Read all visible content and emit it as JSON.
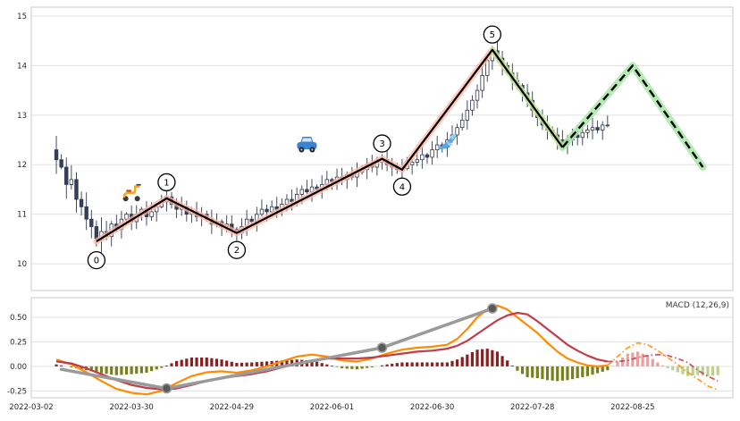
{
  "figure": {
    "background": "#ffffff"
  },
  "chart_data": [
    {
      "type": "candlestick",
      "title": "",
      "xlim": [
        0,
        140
      ],
      "ylim": [
        9.46,
        15.18
      ],
      "y_ticks": [
        10,
        11,
        12,
        13,
        14,
        15
      ],
      "y_tick_labels": [
        "10",
        "11",
        "12",
        "13",
        "14",
        "15"
      ],
      "x_tick_indices": [
        0,
        20,
        40,
        60,
        80,
        100,
        120
      ],
      "x_tick_labels": [
        "2022-03-02",
        "2022-03-30",
        "2022-04-29",
        "2022-06-01",
        "2022-06-30",
        "2022-07-28",
        "2022-08-25"
      ],
      "grid": "horizontal",
      "candles": {
        "start_index": 5,
        "closes": [
          12.1,
          11.95,
          11.6,
          11.7,
          11.3,
          11.15,
          10.9,
          10.75,
          10.5,
          10.65,
          10.55,
          10.8,
          10.7,
          10.9,
          11.0,
          10.85,
          11.0,
          11.1,
          10.95,
          11.05,
          11.15,
          11.25,
          11.35,
          11.2,
          11.1,
          11.15,
          11.0,
          11.05,
          10.95,
          11.0,
          10.9,
          10.8,
          10.85,
          10.75,
          10.8,
          10.7,
          10.62,
          10.75,
          10.9,
          10.85,
          11.0,
          11.1,
          11.05,
          11.15,
          11.1,
          11.2,
          11.3,
          11.25,
          11.4,
          11.5,
          11.45,
          11.55,
          11.5,
          11.6,
          11.7,
          11.65,
          11.75,
          11.7,
          11.8,
          11.75,
          11.85,
          11.9,
          12.0,
          11.95,
          12.05,
          12.1,
          12.0,
          11.95,
          11.9,
          11.92,
          12.0,
          12.05,
          12.1,
          12.2,
          12.15,
          12.3,
          12.4,
          12.35,
          12.5,
          12.6,
          12.75,
          12.9,
          13.1,
          13.3,
          13.5,
          13.8,
          14.1,
          14.3,
          14.15,
          14.0,
          13.85,
          13.7,
          13.6,
          13.45,
          13.3,
          13.1,
          12.95,
          12.8,
          12.7,
          12.6,
          12.5,
          12.4,
          12.5,
          12.6,
          12.55,
          12.65,
          12.7,
          12.75,
          12.7,
          12.8,
          12.8
        ]
      },
      "elliott_wave": {
        "line_color": "#000000",
        "highlight_color": "#ffb4a2",
        "points": [
          {
            "label": "0",
            "index": 13,
            "price": 10.45,
            "label_offset": [
              0,
              21
            ]
          },
          {
            "label": "1",
            "index": 27,
            "price": 11.32,
            "label_offset": [
              0,
              -18
            ]
          },
          {
            "label": "2",
            "index": 41,
            "price": 10.62,
            "label_offset": [
              0,
              19
            ]
          },
          {
            "label": "3",
            "index": 70,
            "price": 12.12,
            "label_offset": [
              0,
              -17
            ]
          },
          {
            "label": "4",
            "index": 74,
            "price": 11.9,
            "label_offset": [
              0,
              19
            ]
          },
          {
            "label": "5",
            "index": 92,
            "price": 14.32,
            "label_offset": [
              0,
              -17
            ]
          }
        ]
      },
      "trend_continuation": {
        "style": "solid",
        "line_color": "#000000",
        "highlight_color": "#c9e79b",
        "points": [
          [
            92,
            14.32
          ],
          [
            106,
            12.35
          ]
        ]
      },
      "projection": {
        "style": "dashed",
        "line_color": "#000000",
        "highlight_color": "#a8e6a8",
        "points": [
          [
            106,
            12.35
          ],
          [
            120,
            14.0
          ],
          [
            134,
            11.95
          ]
        ]
      },
      "emoji_markers": [
        {
          "name": "scooter",
          "index": 20,
          "price": 11.45
        },
        {
          "name": "car",
          "index": 55,
          "price": 12.42
        },
        {
          "name": "airplane",
          "index": 83,
          "price": 12.45
        }
      ],
      "candle_colors": {
        "up_fill": "#ffffff",
        "down_fill": "#35405a",
        "edge": "#2e3950"
      }
    },
    {
      "type": "line",
      "label": "MACD (12,26,9)",
      "ylim": [
        -0.32,
        0.7
      ],
      "y_ticks": [
        -0.25,
        0.0,
        0.25,
        0.5
      ],
      "y_tick_labels": [
        "-0.25",
        "0.00",
        "0.25",
        "0.50"
      ],
      "series": [
        {
          "name": "macd",
          "color": "#ff8c00",
          "width": 2.2,
          "points": [
            [
              5,
              0.07
            ],
            [
              8,
              0.02
            ],
            [
              11,
              -0.06
            ],
            [
              14,
              -0.15
            ],
            [
              17,
              -0.23
            ],
            [
              20,
              -0.27
            ],
            [
              23,
              -0.285
            ],
            [
              26,
              -0.25
            ],
            [
              29,
              -0.17
            ],
            [
              32,
              -0.1
            ],
            [
              35,
              -0.06
            ],
            [
              38,
              -0.05
            ],
            [
              41,
              -0.065
            ],
            [
              44,
              -0.04
            ],
            [
              47,
              0.0
            ],
            [
              50,
              0.05
            ],
            [
              53,
              0.1
            ],
            [
              56,
              0.12
            ],
            [
              59,
              0.1
            ],
            [
              62,
              0.06
            ],
            [
              65,
              0.05
            ],
            [
              68,
              0.08
            ],
            [
              71,
              0.13
            ],
            [
              74,
              0.17
            ],
            [
              77,
              0.19
            ],
            [
              80,
              0.2
            ],
            [
              83,
              0.22
            ],
            [
              85,
              0.28
            ],
            [
              87,
              0.38
            ],
            [
              89,
              0.5
            ],
            [
              91,
              0.58
            ],
            [
              93,
              0.62
            ],
            [
              95,
              0.58
            ],
            [
              97,
              0.5
            ],
            [
              99,
              0.42
            ],
            [
              101,
              0.34
            ],
            [
              103,
              0.24
            ],
            [
              105,
              0.15
            ],
            [
              107,
              0.08
            ],
            [
              109,
              0.04
            ],
            [
              111,
              0.01
            ],
            [
              113,
              0.0
            ],
            [
              115,
              0.01
            ]
          ],
          "projection": [
            [
              115,
              0.01
            ],
            [
              117,
              0.1
            ],
            [
              119,
              0.19
            ],
            [
              121,
              0.24
            ],
            [
              123,
              0.22
            ],
            [
              125,
              0.16
            ],
            [
              127,
              0.09
            ],
            [
              129,
              0.02
            ],
            [
              131,
              -0.06
            ],
            [
              133,
              -0.13
            ],
            [
              135,
              -0.2
            ],
            [
              137,
              -0.24
            ]
          ]
        },
        {
          "name": "signal",
          "color": "#c23b4b",
          "width": 2.2,
          "points": [
            [
              5,
              0.05
            ],
            [
              8,
              0.03
            ],
            [
              11,
              -0.02
            ],
            [
              14,
              -0.08
            ],
            [
              17,
              -0.14
            ],
            [
              20,
              -0.19
            ],
            [
              23,
              -0.22
            ],
            [
              26,
              -0.235
            ],
            [
              29,
              -0.225
            ],
            [
              32,
              -0.19
            ],
            [
              35,
              -0.15
            ],
            [
              38,
              -0.12
            ],
            [
              41,
              -0.1
            ],
            [
              44,
              -0.08
            ],
            [
              47,
              -0.05
            ],
            [
              50,
              -0.01
            ],
            [
              53,
              0.03
            ],
            [
              56,
              0.06
            ],
            [
              59,
              0.08
            ],
            [
              62,
              0.08
            ],
            [
              65,
              0.08
            ],
            [
              68,
              0.09
            ],
            [
              71,
              0.11
            ],
            [
              74,
              0.13
            ],
            [
              77,
              0.15
            ],
            [
              80,
              0.16
            ],
            [
              83,
              0.18
            ],
            [
              85,
              0.21
            ],
            [
              87,
              0.26
            ],
            [
              89,
              0.33
            ],
            [
              91,
              0.4
            ],
            [
              93,
              0.47
            ],
            [
              95,
              0.52
            ],
            [
              97,
              0.545
            ],
            [
              99,
              0.53
            ],
            [
              101,
              0.46
            ],
            [
              103,
              0.38
            ],
            [
              105,
              0.3
            ],
            [
              107,
              0.22
            ],
            [
              109,
              0.16
            ],
            [
              111,
              0.11
            ],
            [
              113,
              0.07
            ],
            [
              115,
              0.05
            ]
          ],
          "projection": [
            [
              115,
              0.05
            ],
            [
              117,
              0.05
            ],
            [
              119,
              0.06
            ],
            [
              121,
              0.09
            ],
            [
              123,
              0.11
            ],
            [
              125,
              0.12
            ],
            [
              127,
              0.11
            ],
            [
              129,
              0.08
            ],
            [
              131,
              0.04
            ],
            [
              133,
              -0.04
            ],
            [
              135,
              -0.1
            ],
            [
              137,
              -0.15
            ]
          ]
        },
        {
          "name": "wave-macd",
          "color": "#9a9a9a",
          "width": 3.5,
          "points": [
            [
              6,
              -0.03
            ],
            [
              27,
              -0.225
            ],
            [
              70,
              0.19
            ],
            [
              92,
              0.59
            ]
          ],
          "markers": [
            [
              27,
              -0.225
            ],
            [
              70,
              0.19
            ],
            [
              92,
              0.59
            ]
          ],
          "marker_fill": "#5a5a5a",
          "marker_edge": "#9a9a9a"
        }
      ],
      "histogram": {
        "note": "macd minus signal",
        "colors": {
          "pos": "#8b1f1f",
          "neg": "#76801f",
          "pos_projected": "#e8a0a0",
          "neg_projected": "#bdd08f"
        }
      }
    }
  ],
  "style": {
    "grid_color": "#e0e0e0",
    "panel_border": "#c8c8c8",
    "tick_text_color": "#262626"
  }
}
